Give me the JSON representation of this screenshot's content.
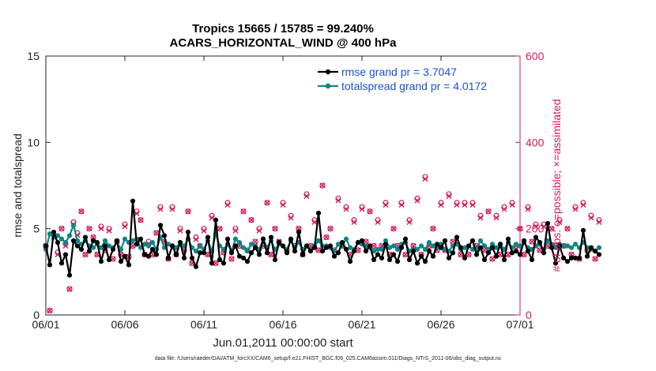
{
  "chart_data": {
    "type": "line",
    "title": [
      "Tropics 15665 / 15785 = 99.240%",
      "ACARS_HORIZONTAL_WIND @ 400 hPa"
    ],
    "xlabel": "Jun.01,2011 00:00:00 start",
    "ylabel_left": "rmse and totalspread",
    "ylabel_right": "# of obs: o=possible; ×=assimilated",
    "x_ticks": [
      "06/01",
      "06/06",
      "06/11",
      "06/16",
      "06/21",
      "06/26",
      "07/01"
    ],
    "x_range_days": [
      0,
      30
    ],
    "y_left": {
      "range": [
        0,
        15
      ],
      "ticks": [
        "0",
        "5",
        "10",
        "15"
      ]
    },
    "y_right": {
      "range": [
        0,
        600
      ],
      "ticks": [
        "0",
        "200",
        "400",
        "600"
      ]
    },
    "grid": "off",
    "legend_position": "top-right",
    "colors": {
      "rmse": "#000000",
      "totalspread": "#0e8585",
      "obs": "#d21b5b",
      "legend_text": "#1a4fd8"
    },
    "series": [
      {
        "name": "rmse grand pr = 3.7047",
        "axis": "left",
        "marker": "filled-circle",
        "x_step_days": 0.25,
        "values": [
          4.0,
          2.9,
          4.8,
          4.2,
          3.0,
          3.5,
          2.3,
          4.3,
          4.0,
          3.8,
          4.5,
          3.7,
          4.3,
          4.2,
          3.1,
          4.0,
          3.2,
          3.8,
          4.3,
          3.1,
          3.4,
          2.9,
          6.6,
          4.1,
          4.4,
          3.5,
          3.4,
          3.8,
          3.5,
          5.2,
          4.6,
          3.3,
          4.0,
          3.5,
          4.2,
          3.3,
          4.8,
          3.3,
          2.8,
          3.6,
          3.6,
          4.5,
          3.0,
          5.5,
          3.2,
          3.0,
          4.4,
          3.6,
          4.0,
          3.4,
          3.3,
          3.1,
          3.6,
          3.9,
          3.5,
          4.4,
          3.6,
          4.5,
          3.2,
          4.2,
          4.0,
          3.6,
          4.4,
          3.7,
          4.8,
          3.5,
          4.0,
          3.7,
          3.9,
          5.9,
          3.7,
          3.9,
          4.0,
          3.4,
          3.6,
          4.2,
          3.8,
          3.1,
          3.7,
          4.2,
          4.3,
          3.7,
          4.0,
          3.2,
          3.5,
          3.3,
          4.1,
          3.2,
          3.5,
          3.1,
          3.9,
          4.4,
          3.2,
          3.7,
          3.0,
          3.4,
          3.1,
          3.7,
          3.4,
          4.1,
          3.9,
          4.3,
          3.3,
          3.6,
          4.5,
          3.9,
          3.3,
          4.0,
          4.3,
          3.5,
          3.9,
          3.2,
          3.6,
          3.9,
          3.4,
          4.1,
          3.2,
          4.4,
          3.6,
          3.7,
          3.5,
          4.3,
          3.7,
          3.2,
          4.5,
          4.2,
          3.6,
          5.3,
          3.9,
          3.0,
          4.0,
          3.3,
          3.1,
          3.3,
          3.3,
          3.3,
          4.9,
          3.4,
          3.9,
          3.7,
          3.5
        ]
      },
      {
        "name": "totalspread grand pr = 4.0172",
        "axis": "left",
        "marker": "filled-circle",
        "x_step_days": 0.25,
        "values": [
          3.8,
          4.7,
          4.5,
          4.6,
          4.4,
          4.2,
          4.6,
          5.2,
          4.3,
          4.1,
          4.3,
          4.0,
          3.9,
          4.1,
          3.9,
          4.3,
          4.0,
          3.9,
          4.2,
          3.8,
          4.4,
          4.2,
          4.3,
          4.4,
          3.9,
          4.1,
          4.0,
          4.2,
          3.8,
          4.5,
          3.9,
          4.1,
          4.0,
          3.9,
          4.2,
          4.0,
          4.4,
          3.9,
          3.7,
          4.0,
          3.8,
          4.3,
          3.7,
          4.7,
          4.0,
          3.8,
          4.1,
          3.7,
          4.4,
          4.2,
          3.9,
          3.7,
          4.1,
          4.0,
          3.8,
          4.4,
          3.9,
          4.3,
          3.8,
          4.1,
          4.0,
          3.8,
          4.3,
          3.9,
          4.2,
          3.8,
          4.0,
          3.8,
          4.0,
          4.3,
          4.0,
          4.0,
          3.9,
          3.7,
          4.1,
          4.0,
          4.4,
          3.9,
          3.8,
          4.2,
          4.1,
          4.0,
          3.9,
          3.7,
          3.8,
          3.8,
          4.3,
          3.9,
          4.0,
          3.8,
          4.1,
          4.2,
          3.7,
          3.8,
          3.8,
          4.0,
          3.8,
          4.2,
          4.0,
          3.9,
          4.1,
          3.8,
          3.7,
          4.0,
          4.1,
          3.8,
          3.9,
          4.0,
          3.8,
          3.8,
          4.3,
          4.0,
          3.8,
          4.1,
          3.9,
          4.1,
          3.8,
          4.2,
          3.9,
          4.1,
          4.0,
          4.2,
          3.9,
          3.8,
          4.0,
          4.1,
          3.8,
          4.3,
          4.1,
          3.9,
          4.1,
          4.0,
          4.0,
          3.9,
          4.1,
          3.9,
          4.2,
          3.9,
          3.8,
          3.7,
          3.9
        ]
      },
      {
        "name": "possible",
        "axis": "right",
        "marker": "circle",
        "x_step_days": 0.25,
        "values": [
          160,
          10,
          185,
          145,
          200,
          165,
          60,
          215,
          190,
          240,
          140,
          200,
          180,
          140,
          205,
          150,
          200,
          130,
          170,
          140,
          210,
          135,
          160,
          240,
          220,
          140,
          170,
          140,
          190,
          250,
          170,
          130,
          250,
          140,
          200,
          150,
          240,
          120,
          180,
          160,
          200,
          140,
          230,
          120,
          200,
          145,
          260,
          130,
          200,
          160,
          240,
          150,
          220,
          170,
          200,
          160,
          260,
          140,
          200,
          170,
          260,
          150,
          230,
          160,
          200,
          140,
          280,
          160,
          220,
          150,
          300,
          180,
          200,
          150,
          270,
          160,
          250,
          140,
          220,
          150,
          250,
          170,
          240,
          160,
          220,
          160,
          260,
          140,
          200,
          160,
          260,
          140,
          220,
          160,
          270,
          140,
          320,
          160,
          200,
          150,
          260,
          150,
          280,
          170,
          260,
          140,
          260,
          140,
          260,
          160,
          230,
          150,
          240,
          130,
          230,
          140,
          250,
          140,
          260,
          160,
          200,
          140,
          250,
          170,
          210,
          150,
          210,
          160,
          200,
          160,
          220,
          160,
          200,
          140,
          250,
          130,
          260,
          150,
          230,
          130,
          220
        ]
      },
      {
        "name": "assimilated",
        "axis": "right",
        "marker": "x",
        "x_step_days": 0.25,
        "values": [
          160,
          10,
          180,
          140,
          200,
          160,
          60,
          210,
          185,
          240,
          140,
          200,
          180,
          140,
          200,
          150,
          195,
          130,
          170,
          140,
          205,
          135,
          160,
          235,
          220,
          140,
          165,
          140,
          190,
          245,
          170,
          130,
          245,
          140,
          195,
          150,
          240,
          120,
          175,
          160,
          195,
          140,
          225,
          120,
          200,
          145,
          255,
          130,
          195,
          160,
          240,
          150,
          220,
          170,
          195,
          160,
          260,
          140,
          200,
          170,
          255,
          150,
          225,
          160,
          200,
          140,
          275,
          160,
          215,
          150,
          300,
          180,
          200,
          150,
          265,
          160,
          245,
          140,
          215,
          150,
          245,
          170,
          240,
          160,
          215,
          160,
          255,
          140,
          200,
          160,
          255,
          140,
          215,
          160,
          265,
          140,
          315,
          160,
          200,
          150,
          255,
          150,
          275,
          170,
          255,
          140,
          255,
          140,
          255,
          160,
          225,
          150,
          240,
          130,
          225,
          140,
          245,
          140,
          255,
          160,
          200,
          140,
          245,
          170,
          205,
          150,
          205,
          160,
          200,
          160,
          215,
          160,
          200,
          140,
          245,
          130,
          255,
          150,
          225,
          130,
          215
        ]
      }
    ],
    "footer": "data file: /Users/raeder/DAI/ATM_forcXX/CAM6_setup/f.e21.FHIST_BGC.f09_025.CAM6assim.011/Diags_NTrS_2011-06/obs_diag_output.nc"
  }
}
